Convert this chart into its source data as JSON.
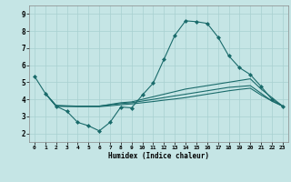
{
  "title": "",
  "xlabel": "Humidex (Indice chaleur)",
  "ylabel": "",
  "xlim": [
    -0.5,
    23.5
  ],
  "ylim": [
    1.5,
    9.5
  ],
  "yticks": [
    2,
    3,
    4,
    5,
    6,
    7,
    8,
    9
  ],
  "xticks": [
    0,
    1,
    2,
    3,
    4,
    5,
    6,
    7,
    8,
    9,
    10,
    11,
    12,
    13,
    14,
    15,
    16,
    17,
    18,
    19,
    20,
    21,
    22,
    23
  ],
  "background_color": "#c5e5e5",
  "grid_color": "#a8d0d0",
  "line_color": "#1a6b6b",
  "lines": [
    {
      "x": [
        0,
        1,
        2,
        3,
        4,
        5,
        6,
        7,
        8,
        9,
        10,
        11,
        12,
        13,
        14,
        15,
        16,
        17,
        18,
        19,
        20,
        21,
        22,
        23
      ],
      "y": [
        5.35,
        4.35,
        3.6,
        3.3,
        2.65,
        2.45,
        2.15,
        2.65,
        3.55,
        3.5,
        4.25,
        4.95,
        6.35,
        7.75,
        8.6,
        8.55,
        8.45,
        7.65,
        6.55,
        5.85,
        5.45,
        4.75,
        4.0,
        3.6
      ],
      "marker": "D",
      "markersize": 2.0
    },
    {
      "x": [
        1,
        2,
        3,
        4,
        5,
        6,
        7,
        8,
        9,
        10,
        11,
        12,
        13,
        14,
        15,
        16,
        17,
        18,
        19,
        20,
        21,
        22,
        23
      ],
      "y": [
        4.35,
        3.6,
        3.6,
        3.6,
        3.6,
        3.6,
        3.7,
        3.8,
        3.85,
        4.0,
        4.15,
        4.3,
        4.45,
        4.6,
        4.7,
        4.8,
        4.9,
        5.0,
        5.1,
        5.2,
        4.6,
        4.1,
        3.6
      ],
      "marker": null
    },
    {
      "x": [
        1,
        2,
        3,
        4,
        5,
        6,
        7,
        8,
        9,
        10,
        11,
        12,
        13,
        14,
        15,
        16,
        17,
        18,
        19,
        20,
        21,
        22,
        23
      ],
      "y": [
        4.35,
        3.65,
        3.62,
        3.6,
        3.6,
        3.6,
        3.68,
        3.75,
        3.8,
        3.9,
        4.0,
        4.1,
        4.2,
        4.3,
        4.4,
        4.5,
        4.6,
        4.7,
        4.75,
        4.8,
        4.35,
        3.9,
        3.6
      ],
      "marker": null
    },
    {
      "x": [
        1,
        2,
        3,
        4,
        5,
        6,
        7,
        8,
        9,
        10,
        11,
        12,
        13,
        14,
        15,
        16,
        17,
        18,
        19,
        20,
        21,
        22,
        23
      ],
      "y": [
        4.35,
        3.6,
        3.58,
        3.57,
        3.57,
        3.57,
        3.62,
        3.68,
        3.73,
        3.8,
        3.87,
        3.95,
        4.02,
        4.1,
        4.2,
        4.3,
        4.4,
        4.5,
        4.58,
        4.65,
        4.25,
        3.9,
        3.6
      ],
      "marker": null
    }
  ]
}
